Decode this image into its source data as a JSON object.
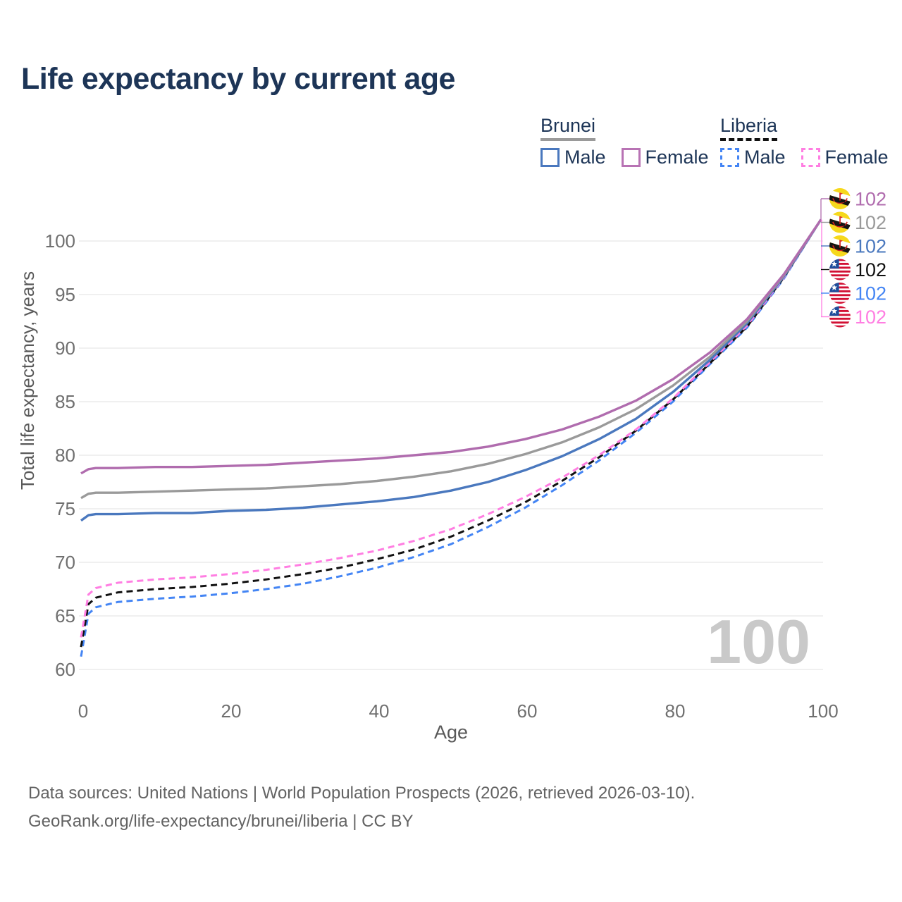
{
  "page": {
    "title": "Life expectancy by current age"
  },
  "colors": {
    "title_text": "#1d3557",
    "legend_text": "#1d3557",
    "axis_text": "#6f6f6f",
    "axis_title": "#595959",
    "grid": "#ececec",
    "footer_text": "#636363",
    "watermark": "#c9c9c9"
  },
  "legend": {
    "groups": [
      {
        "name": "Brunei",
        "line_style": "solid",
        "line_color": "#9a9a9a",
        "items": [
          {
            "label": "Male",
            "color": "#4a78be"
          },
          {
            "label": "Female",
            "color": "#b873b4"
          }
        ]
      },
      {
        "name": "Liberia",
        "line_style": "dashed",
        "line_color": "#111111",
        "items": [
          {
            "label": "Male",
            "color": "#4485f4"
          },
          {
            "label": "Female",
            "color": "#ff7ee2"
          }
        ]
      }
    ]
  },
  "chart_data": {
    "type": "line",
    "title": "Life expectancy by current age",
    "xlabel": "Age",
    "ylabel": "Total life expectancy, years",
    "xlim": [
      0,
      100
    ],
    "ylim": [
      60,
      103
    ],
    "xticks": [
      0,
      20,
      40,
      60,
      80,
      100
    ],
    "yticks": [
      60,
      65,
      70,
      75,
      80,
      85,
      90,
      95,
      100
    ],
    "grid": "horizontal",
    "legend_position": "top-right",
    "watermark": "100",
    "x": [
      0,
      1,
      2,
      5,
      10,
      15,
      20,
      25,
      30,
      35,
      40,
      45,
      50,
      55,
      60,
      65,
      70,
      75,
      80,
      85,
      90,
      95,
      100
    ],
    "series": [
      {
        "name": "Liberia Male",
        "country": "Liberia",
        "sex": "Male",
        "style": "dashed",
        "color": "#4485f4",
        "values": [
          61.2,
          65.2,
          65.8,
          66.3,
          66.6,
          66.8,
          67.1,
          67.5,
          68.0,
          68.7,
          69.5,
          70.5,
          71.7,
          73.3,
          75.1,
          77.2,
          79.5,
          82.1,
          85.0,
          88.5,
          91.9,
          96.5,
          102
        ]
      },
      {
        "name": "Liberia Both sexes",
        "country": "Liberia",
        "sex": "Both",
        "style": "dashed",
        "color": "#111111",
        "values": [
          62.1,
          66.1,
          66.7,
          67.2,
          67.5,
          67.7,
          68.0,
          68.4,
          68.9,
          69.5,
          70.3,
          71.2,
          72.4,
          73.9,
          75.6,
          77.6,
          79.8,
          82.3,
          85.2,
          88.6,
          92.0,
          96.6,
          102
        ]
      },
      {
        "name": "Liberia Female",
        "country": "Liberia",
        "sex": "Female",
        "style": "dashed",
        "color": "#ff7ee2",
        "values": [
          63.0,
          67.0,
          67.6,
          68.1,
          68.4,
          68.6,
          68.9,
          69.3,
          69.8,
          70.4,
          71.1,
          72.0,
          73.1,
          74.5,
          76.1,
          77.9,
          80.0,
          82.4,
          85.3,
          88.7,
          92.1,
          96.6,
          102
        ]
      },
      {
        "name": "Brunei Male",
        "country": "Brunei",
        "sex": "Male",
        "style": "solid",
        "color": "#4a78be",
        "values": [
          73.9,
          74.4,
          74.5,
          74.5,
          74.6,
          74.6,
          74.8,
          74.9,
          75.1,
          75.4,
          75.7,
          76.1,
          76.7,
          77.5,
          78.6,
          79.9,
          81.5,
          83.4,
          85.9,
          88.9,
          92.3,
          96.7,
          102
        ]
      },
      {
        "name": "Brunei Both sexes",
        "country": "Brunei",
        "sex": "Both",
        "style": "solid",
        "color": "#9a9a9a",
        "values": [
          76.0,
          76.4,
          76.5,
          76.5,
          76.6,
          76.7,
          76.8,
          76.9,
          77.1,
          77.3,
          77.6,
          78.0,
          78.5,
          79.2,
          80.1,
          81.2,
          82.6,
          84.3,
          86.5,
          89.2,
          92.5,
          96.8,
          102
        ]
      },
      {
        "name": "Brunei Female",
        "country": "Brunei",
        "sex": "Female",
        "style": "solid",
        "color": "#b06cae",
        "values": [
          78.3,
          78.7,
          78.8,
          78.8,
          78.9,
          78.9,
          79.0,
          79.1,
          79.3,
          79.5,
          79.7,
          80.0,
          80.3,
          80.8,
          81.5,
          82.4,
          83.6,
          85.1,
          87.1,
          89.6,
          92.7,
          96.9,
          102
        ]
      }
    ],
    "end_labels": [
      {
        "value": "102",
        "flag": "brunei",
        "series": "Brunei Female",
        "color": "#b06cae"
      },
      {
        "value": "102",
        "flag": "brunei",
        "series": "Brunei Both sexes",
        "color": "#9a9a9a"
      },
      {
        "value": "102",
        "flag": "brunei",
        "series": "Brunei Male",
        "color": "#4a78be"
      },
      {
        "value": "102",
        "flag": "liberia",
        "series": "Liberia Both sexes",
        "color": "#111111"
      },
      {
        "value": "102",
        "flag": "liberia",
        "series": "Liberia Male",
        "color": "#4485f4"
      },
      {
        "value": "102",
        "flag": "liberia",
        "series": "Liberia Female",
        "color": "#ff7ee2"
      }
    ]
  },
  "footer": {
    "line1": "Data sources: United Nations | World Population Prospects (2026, retrieved 2026-03-10).",
    "line2": "GeoRank.org/life-expectancy/brunei/liberia | CC BY"
  }
}
